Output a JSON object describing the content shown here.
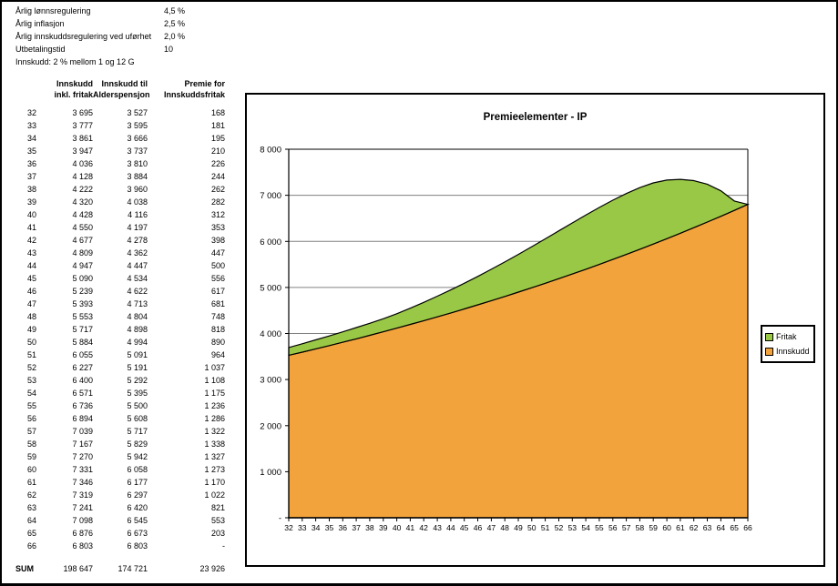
{
  "parameters": {
    "items": [
      {
        "label": "Årlig lønnsregulering",
        "value": "4,5 %"
      },
      {
        "label": "Årlig inflasjon",
        "value": "2,5 %"
      },
      {
        "label": "Årlig innskuddsregulering ved uførhet",
        "value": "2,0 %"
      },
      {
        "label": "Utbetalingstid",
        "value": "10"
      },
      {
        "label": "Innskudd: 2 % mellom 1 og 12 G",
        "value": ""
      }
    ]
  },
  "table": {
    "headers": {
      "col2": "Innskudd\ninkl. fritak",
      "col3": "Innskudd til\nAlderspensjon",
      "col4": "Premie for\nInnskuddsfritak"
    },
    "rows": [
      [
        "32",
        "3 695",
        "3 527",
        "168"
      ],
      [
        "33",
        "3 777",
        "3 595",
        "181"
      ],
      [
        "34",
        "3 861",
        "3 666",
        "195"
      ],
      [
        "35",
        "3 947",
        "3 737",
        "210"
      ],
      [
        "36",
        "4 036",
        "3 810",
        "226"
      ],
      [
        "37",
        "4 128",
        "3 884",
        "244"
      ],
      [
        "38",
        "4 222",
        "3 960",
        "262"
      ],
      [
        "39",
        "4 320",
        "4 038",
        "282"
      ],
      [
        "40",
        "4 428",
        "4 116",
        "312"
      ],
      [
        "41",
        "4 550",
        "4 197",
        "353"
      ],
      [
        "42",
        "4 677",
        "4 278",
        "398"
      ],
      [
        "43",
        "4 809",
        "4 362",
        "447"
      ],
      [
        "44",
        "4 947",
        "4 447",
        "500"
      ],
      [
        "45",
        "5 090",
        "4 534",
        "556"
      ],
      [
        "46",
        "5 239",
        "4 622",
        "617"
      ],
      [
        "47",
        "5 393",
        "4 713",
        "681"
      ],
      [
        "48",
        "5 553",
        "4 804",
        "748"
      ],
      [
        "49",
        "5 717",
        "4 898",
        "818"
      ],
      [
        "50",
        "5 884",
        "4 994",
        "890"
      ],
      [
        "51",
        "6 055",
        "5 091",
        "964"
      ],
      [
        "52",
        "6 227",
        "5 191",
        "1 037"
      ],
      [
        "53",
        "6 400",
        "5 292",
        "1 108"
      ],
      [
        "54",
        "6 571",
        "5 395",
        "1 175"
      ],
      [
        "55",
        "6 736",
        "5 500",
        "1 236"
      ],
      [
        "56",
        "6 894",
        "5 608",
        "1 286"
      ],
      [
        "57",
        "7 039",
        "5 717",
        "1 322"
      ],
      [
        "58",
        "7 167",
        "5 829",
        "1 338"
      ],
      [
        "59",
        "7 270",
        "5 942",
        "1 327"
      ],
      [
        "60",
        "7 331",
        "6 058",
        "1 273"
      ],
      [
        "61",
        "7 346",
        "6 177",
        "1 170"
      ],
      [
        "62",
        "7 319",
        "6 297",
        "1 022"
      ],
      [
        "63",
        "7 241",
        "6 420",
        "821"
      ],
      [
        "64",
        "7 098",
        "6 545",
        "553"
      ],
      [
        "65",
        "6 876",
        "6 673",
        "203"
      ],
      [
        "66",
        "6 803",
        "6 803",
        "-"
      ]
    ],
    "sum_label": "SUM",
    "sum": [
      "198 647",
      "174 721",
      "23 926"
    ]
  },
  "chart_data": {
    "type": "area",
    "stacked": true,
    "title": "Premieelementer - IP",
    "categories": [
      32,
      33,
      34,
      35,
      36,
      37,
      38,
      39,
      40,
      41,
      42,
      43,
      44,
      45,
      46,
      47,
      48,
      49,
      50,
      51,
      52,
      53,
      54,
      55,
      56,
      57,
      58,
      59,
      60,
      61,
      62,
      63,
      64,
      65,
      66
    ],
    "series": [
      {
        "name": "Innskudd",
        "color": "#F2A33C",
        "values": [
          3527,
          3595,
          3666,
          3737,
          3810,
          3884,
          3960,
          4038,
          4116,
          4197,
          4278,
          4362,
          4447,
          4534,
          4622,
          4713,
          4804,
          4898,
          4994,
          5091,
          5191,
          5292,
          5395,
          5500,
          5608,
          5717,
          5829,
          5942,
          6058,
          6177,
          6297,
          6420,
          6545,
          6673,
          6803
        ]
      },
      {
        "name": "Fritak",
        "color": "#99C846",
        "values": [
          168,
          181,
          195,
          210,
          226,
          244,
          262,
          282,
          312,
          353,
          398,
          447,
          500,
          556,
          617,
          681,
          748,
          818,
          890,
          964,
          1037,
          1108,
          1175,
          1236,
          1286,
          1322,
          1338,
          1327,
          1273,
          1170,
          1022,
          821,
          553,
          203,
          0
        ]
      }
    ],
    "ylim": [
      0,
      8000
    ],
    "ytick_step": 1000,
    "ytick_labels": [
      "-",
      "1 000",
      "2 000",
      "3 000",
      "4 000",
      "5 000",
      "6 000",
      "7 000",
      "8 000"
    ],
    "grid": true,
    "legend_position": "right",
    "legend": [
      {
        "label": "Fritak",
        "color": "#99C846"
      },
      {
        "label": "Innskudd",
        "color": "#F2A33C"
      }
    ]
  }
}
